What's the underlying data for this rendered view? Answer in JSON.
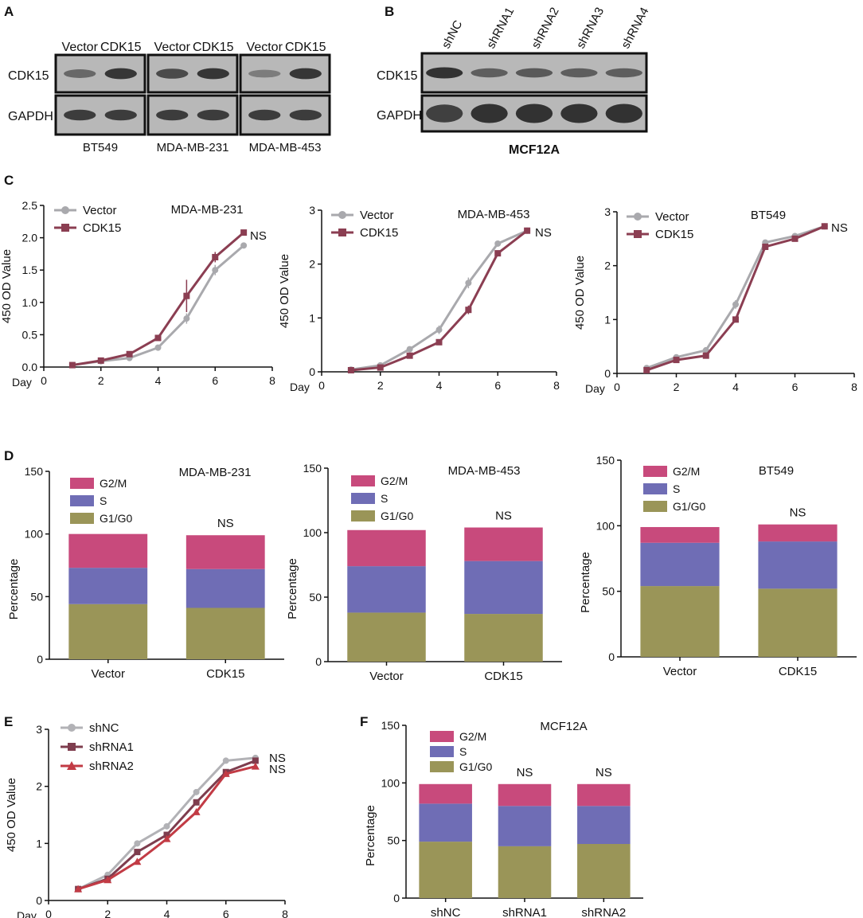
{
  "panel_labels": [
    "A",
    "B",
    "C",
    "D",
    "E",
    "F"
  ],
  "colors": {
    "vector": "#a9a9ad",
    "cdk15": "#8b3e52",
    "shnc": "#b2b2b6",
    "shrna1": "#7e3d4e",
    "shrna2": "#c23b45",
    "g2m": "#c84a7c",
    "s": "#6f6db5",
    "g1g0": "#9a9558",
    "blot_bg": "#b8b8b8",
    "band": "#2a2a2a"
  },
  "blots": {
    "A": {
      "row_labels": [
        "CDK15",
        "GAPDH"
      ],
      "groups": [
        {
          "name": "BT549",
          "lanes": [
            "Vector",
            "CDK15"
          ],
          "cdk15_band": [
            0.45,
            0.95
          ],
          "gapdh_band": [
            0.9,
            0.9
          ]
        },
        {
          "name": "MDA-MB-231",
          "lanes": [
            "Vector",
            "CDK15"
          ],
          "cdk15_band": [
            0.75,
            0.95
          ],
          "gapdh_band": [
            0.9,
            0.9
          ]
        },
        {
          "name": "MDA-MB-453",
          "lanes": [
            "Vector",
            "CDK15"
          ],
          "cdk15_band": [
            0.25,
            0.95
          ],
          "gapdh_band": [
            0.9,
            0.9
          ]
        }
      ]
    },
    "B": {
      "row_labels": [
        "CDK15",
        "GAPDH"
      ],
      "lanes": [
        "shNC",
        "shRNA1",
        "shRNA2",
        "shRNA3",
        "shRNA4"
      ],
      "cdk15_band": [
        1.0,
        0.55,
        0.6,
        0.55,
        0.55
      ],
      "gapdh_band": [
        0.85,
        1.0,
        1.0,
        1.0,
        1.0
      ],
      "caption": "MCF12A"
    }
  },
  "chart_data": [
    {
      "id": "C1",
      "type": "line",
      "title": "MDA-MB-231",
      "xlabel": "Day",
      "ylabel": "450 OD Value",
      "xlim": [
        0,
        8
      ],
      "xticks": [
        "0",
        "2",
        "4",
        "6",
        "8"
      ],
      "ylim": [
        0,
        2.5
      ],
      "yticks": [
        "0.0",
        "0.5",
        "1.0",
        "1.5",
        "2.0",
        "2.5"
      ],
      "x": [
        1,
        2,
        3,
        4,
        5,
        6,
        7
      ],
      "series": [
        {
          "name": "Vector",
          "color": "#a9a9ad",
          "marker": "circle",
          "values": [
            0.03,
            0.09,
            0.14,
            0.3,
            0.75,
            1.5,
            1.88
          ],
          "err": [
            0.01,
            0.01,
            0.01,
            0.02,
            0.08,
            0.08,
            0.02
          ]
        },
        {
          "name": "CDK15",
          "color": "#8b3e52",
          "marker": "square",
          "values": [
            0.03,
            0.1,
            0.2,
            0.45,
            1.1,
            1.7,
            2.08
          ],
          "err": [
            0.01,
            0.01,
            0.02,
            0.04,
            0.25,
            0.08,
            0.02
          ]
        }
      ],
      "annotation": "NS"
    },
    {
      "id": "C2",
      "type": "line",
      "title": "MDA-MB-453",
      "xlabel": "Day",
      "ylabel": "450 OD Value",
      "xlim": [
        0,
        8
      ],
      "xticks": [
        "0",
        "2",
        "4",
        "6",
        "8"
      ],
      "ylim": [
        0,
        3
      ],
      "yticks": [
        "0",
        "1",
        "2",
        "3"
      ],
      "x": [
        1,
        2,
        3,
        4,
        5,
        6,
        7
      ],
      "series": [
        {
          "name": "Vector",
          "color": "#a9a9ad",
          "marker": "circle",
          "values": [
            0.04,
            0.12,
            0.42,
            0.78,
            1.65,
            2.38,
            2.62
          ],
          "err": [
            0.01,
            0.02,
            0.05,
            0.08,
            0.1,
            0.03,
            0.02
          ]
        },
        {
          "name": "CDK15",
          "color": "#8b3e52",
          "marker": "square",
          "values": [
            0.03,
            0.08,
            0.3,
            0.55,
            1.15,
            2.2,
            2.62
          ],
          "err": [
            0.01,
            0.01,
            0.03,
            0.05,
            0.08,
            0.04,
            0.02
          ]
        }
      ],
      "annotation": "NS"
    },
    {
      "id": "C3",
      "type": "line",
      "title": "BT549",
      "xlabel": "Day",
      "ylabel": "450 OD Value",
      "xlim": [
        0,
        8
      ],
      "xticks": [
        "0",
        "2",
        "4",
        "6",
        "8"
      ],
      "ylim": [
        0,
        3
      ],
      "yticks": [
        "0",
        "1",
        "2",
        "3"
      ],
      "x": [
        1,
        2,
        3,
        4,
        5,
        6,
        7
      ],
      "series": [
        {
          "name": "Vector",
          "color": "#a9a9ad",
          "marker": "circle",
          "values": [
            0.1,
            0.3,
            0.43,
            1.28,
            2.43,
            2.55,
            2.73
          ],
          "err": [
            0.01,
            0.02,
            0.02,
            0.08,
            0.03,
            0.03,
            0.02
          ]
        },
        {
          "name": "CDK15",
          "color": "#8b3e52",
          "marker": "square",
          "values": [
            0.06,
            0.25,
            0.33,
            1.0,
            2.35,
            2.5,
            2.73
          ],
          "err": [
            0.01,
            0.02,
            0.02,
            0.05,
            0.03,
            0.03,
            0.02
          ]
        }
      ],
      "annotation": "NS"
    },
    {
      "id": "D1",
      "type": "bar",
      "stacked": true,
      "title": "MDA-MB-231",
      "ylabel": "Percentage",
      "ylim": [
        0,
        150
      ],
      "yticks": [
        "0",
        "50",
        "100",
        "150"
      ],
      "categories": [
        "Vector",
        "CDK15"
      ],
      "series": [
        {
          "name": "G1/G0",
          "color": "#9a9558",
          "values": [
            44,
            41
          ]
        },
        {
          "name": "S",
          "color": "#6f6db5",
          "values": [
            29,
            31
          ]
        },
        {
          "name": "G2/M",
          "color": "#c84a7c",
          "values": [
            27,
            27
          ]
        }
      ],
      "legend_order": [
        "G2/M",
        "S",
        "G1/G0"
      ],
      "annotations": [
        {
          "category": "CDK15",
          "text": "NS"
        }
      ]
    },
    {
      "id": "D2",
      "type": "bar",
      "stacked": true,
      "title": "MDA-MB-453",
      "ylabel": "Percentage",
      "ylim": [
        0,
        150
      ],
      "yticks": [
        "0",
        "50",
        "100",
        "150"
      ],
      "categories": [
        "Vector",
        "CDK15"
      ],
      "series": [
        {
          "name": "G1/G0",
          "color": "#9a9558",
          "values": [
            38,
            37
          ]
        },
        {
          "name": "S",
          "color": "#6f6db5",
          "values": [
            36,
            41
          ]
        },
        {
          "name": "G2/M",
          "color": "#c84a7c",
          "values": [
            28,
            26
          ]
        }
      ],
      "legend_order": [
        "G2/M",
        "S",
        "G1/G0"
      ],
      "annotations": [
        {
          "category": "CDK15",
          "text": "NS"
        }
      ]
    },
    {
      "id": "D3",
      "type": "bar",
      "stacked": true,
      "title": "BT549",
      "ylabel": "Percentage",
      "ylim": [
        0,
        150
      ],
      "yticks": [
        "0",
        "50",
        "100",
        "150"
      ],
      "categories": [
        "Vector",
        "CDK15"
      ],
      "series": [
        {
          "name": "G1/G0",
          "color": "#9a9558",
          "values": [
            54,
            52
          ]
        },
        {
          "name": "S",
          "color": "#6f6db5",
          "values": [
            33,
            36
          ]
        },
        {
          "name": "G2/M",
          "color": "#c84a7c",
          "values": [
            12,
            13
          ]
        }
      ],
      "legend_order": [
        "G2/M",
        "S",
        "G1/G0"
      ],
      "annotations": [
        {
          "category": "CDK15",
          "text": "NS"
        }
      ]
    },
    {
      "id": "E",
      "type": "line",
      "title": "",
      "xlabel": "Day",
      "ylabel": "450 OD Value",
      "xlim": [
        0,
        8
      ],
      "xticks": [
        "0",
        "2",
        "4",
        "6",
        "8"
      ],
      "ylim": [
        0,
        3
      ],
      "yticks": [
        "0",
        "1",
        "2",
        "3"
      ],
      "x": [
        1,
        2,
        3,
        4,
        5,
        6,
        7
      ],
      "series": [
        {
          "name": "shNC",
          "color": "#b2b2b6",
          "marker": "circle",
          "values": [
            0.2,
            0.45,
            1.0,
            1.3,
            1.9,
            2.45,
            2.5
          ],
          "err": [
            0.01,
            0.02,
            0.02,
            0.03,
            0.03,
            0.03,
            0.02
          ]
        },
        {
          "name": "shRNA1",
          "color": "#7e3d4e",
          "marker": "square",
          "values": [
            0.2,
            0.38,
            0.85,
            1.15,
            1.72,
            2.25,
            2.45
          ],
          "err": [
            0.01,
            0.02,
            0.03,
            0.03,
            0.05,
            0.04,
            0.02
          ]
        },
        {
          "name": "shRNA2",
          "color": "#c23b45",
          "marker": "triangle",
          "values": [
            0.2,
            0.36,
            0.68,
            1.08,
            1.55,
            2.22,
            2.35
          ],
          "err": [
            0.01,
            0.02,
            0.03,
            0.04,
            0.05,
            0.04,
            0.02
          ]
        }
      ],
      "annotations": [
        "NS",
        "NS"
      ]
    },
    {
      "id": "F",
      "type": "bar",
      "stacked": true,
      "title": "MCF12A",
      "ylabel": "Percentage",
      "ylim": [
        0,
        150
      ],
      "yticks": [
        "0",
        "50",
        "100",
        "150"
      ],
      "categories": [
        "shNC",
        "shRNA1",
        "shRNA2"
      ],
      "series": [
        {
          "name": "G1/G0",
          "color": "#9a9558",
          "values": [
            49,
            45,
            47
          ]
        },
        {
          "name": "S",
          "color": "#6f6db5",
          "values": [
            33,
            35,
            33
          ]
        },
        {
          "name": "G2/M",
          "color": "#c84a7c",
          "values": [
            17,
            19,
            19
          ]
        }
      ],
      "legend_order": [
        "G2/M",
        "S",
        "G1/G0"
      ],
      "annotations": [
        {
          "category": "shRNA1",
          "text": "NS"
        },
        {
          "category": "shRNA2",
          "text": "NS"
        }
      ]
    }
  ]
}
